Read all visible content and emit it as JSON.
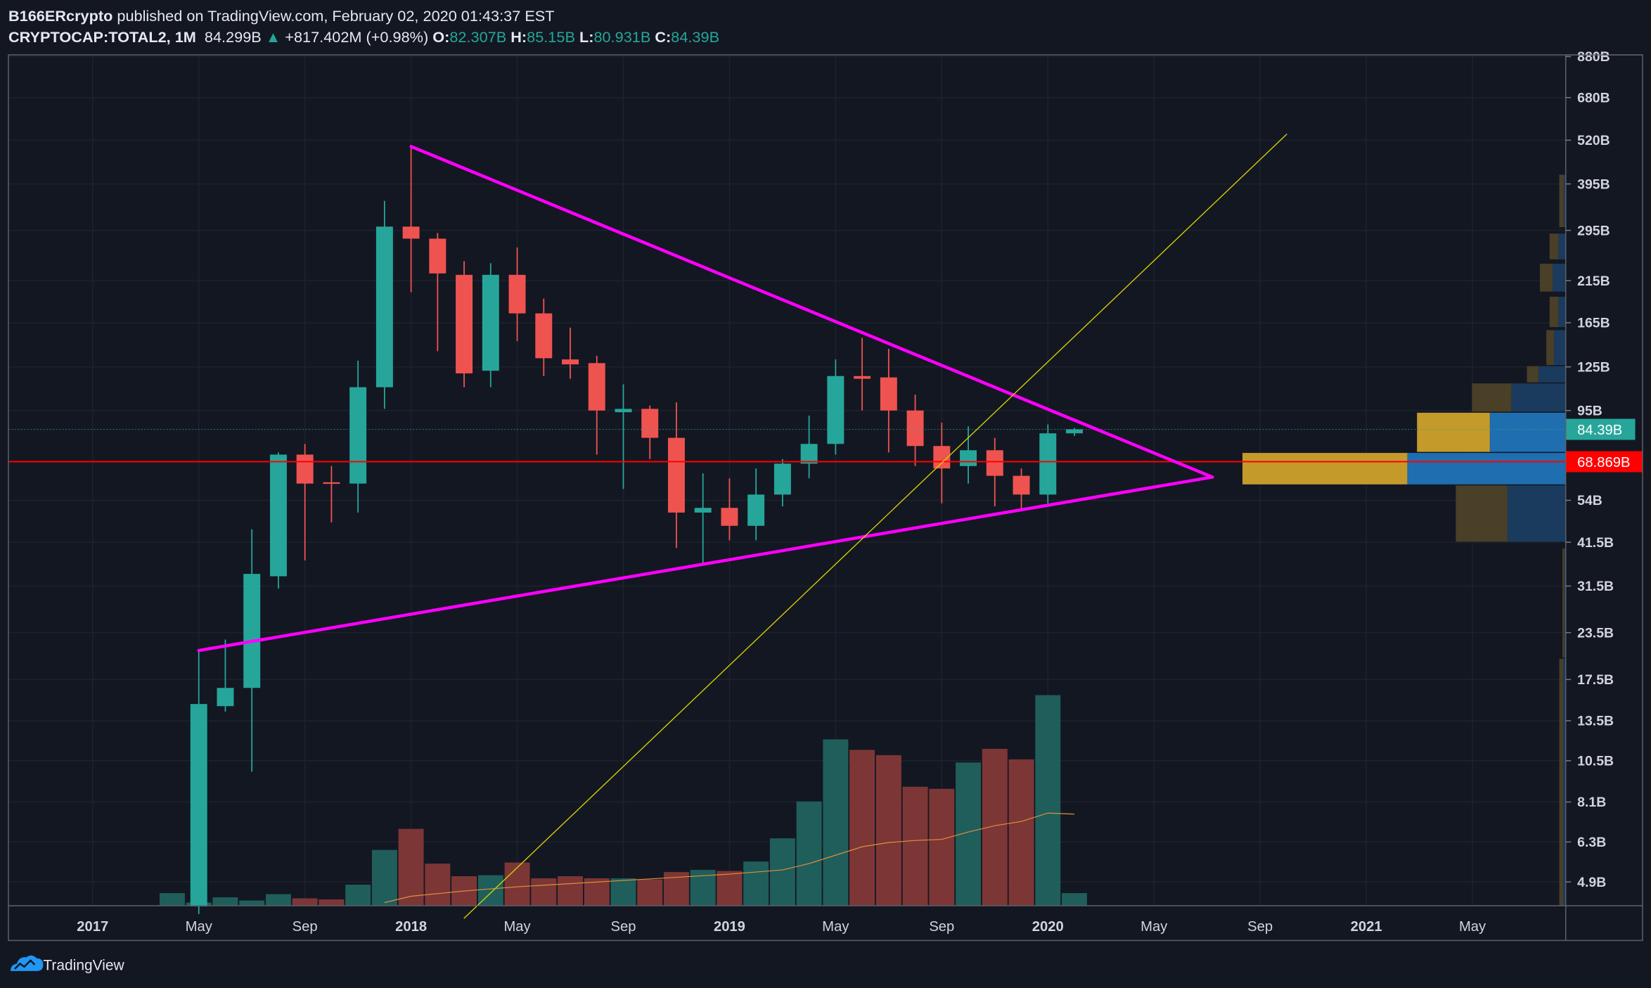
{
  "header": {
    "author": "B166ERcrypto",
    "published": " published on TradingView.com, February 02, 2020 01:43:37 EST",
    "symbol": "CRYPTOCAP:TOTAL2, 1M",
    "last": "84.299B",
    "change": "+817.402M (+0.98%)",
    "o_label": "O:",
    "o": "82.307B",
    "h_label": "H:",
    "h": "85.15B",
    "l_label": "L:",
    "l": "80.931B",
    "c_label": "C:",
    "c": "84.39B"
  },
  "footer": {
    "brand": "TradingView"
  },
  "colors": {
    "bg": "#131722",
    "up": "#26a69a",
    "down": "#ef5350",
    "vol_up": "#1f5e5b",
    "vol_down": "#7d3636",
    "trend": "#ff00ff",
    "diag": "#d4d400",
    "support": "#ff0000",
    "ma": "#e0913a"
  },
  "chart_data": {
    "type": "candlestick",
    "title": "CRYPTOCAP:TOTAL2, 1M",
    "yscale": "log",
    "ylim": [
      3.9,
      960
    ],
    "x_start": "2017-01",
    "price_ticks": [
      {
        "label": "880B",
        "value": 880
      },
      {
        "label": "680B",
        "value": 680
      },
      {
        "label": "520B",
        "value": 520
      },
      {
        "label": "395B",
        "value": 395
      },
      {
        "label": "295B",
        "value": 295
      },
      {
        "label": "215B",
        "value": 215
      },
      {
        "label": "165B",
        "value": 165
      },
      {
        "label": "125B",
        "value": 125
      },
      {
        "label": "95B",
        "value": 95
      },
      {
        "label": "54B",
        "value": 54
      },
      {
        "label": "41.5B",
        "value": 41.5
      },
      {
        "label": "31.5B",
        "value": 31.5
      },
      {
        "label": "23.5B",
        "value": 23.5
      },
      {
        "label": "17.5B",
        "value": 17.5
      },
      {
        "label": "13.5B",
        "value": 13.5
      },
      {
        "label": "10.5B",
        "value": 10.5
      },
      {
        "label": "8.1B",
        "value": 8.1
      },
      {
        "label": "6.3B",
        "value": 6.3
      },
      {
        "label": "4.9B",
        "value": 4.9
      }
    ],
    "time_ticks": [
      {
        "label": "2017",
        "m": 0,
        "bold": true
      },
      {
        "label": "May",
        "m": 4
      },
      {
        "label": "Sep",
        "m": 8
      },
      {
        "label": "2018",
        "m": 12,
        "bold": true
      },
      {
        "label": "May",
        "m": 16
      },
      {
        "label": "Sep",
        "m": 20
      },
      {
        "label": "2019",
        "m": 24,
        "bold": true
      },
      {
        "label": "May",
        "m": 28
      },
      {
        "label": "Sep",
        "m": 32
      },
      {
        "label": "2020",
        "m": 36,
        "bold": true
      },
      {
        "label": "May",
        "m": 40
      },
      {
        "label": "Sep",
        "m": 44
      },
      {
        "label": "2021",
        "m": 48,
        "bold": true
      },
      {
        "label": "May",
        "m": 52
      }
    ],
    "price_badges": [
      {
        "label": "84.39B",
        "value": 84.39,
        "kind": "last"
      },
      {
        "label": "68.869B",
        "value": 68.869,
        "kind": "support"
      }
    ],
    "candles": [
      {
        "m": 4,
        "o": 4.2,
        "h": 21,
        "l": 4.0,
        "c": 15
      },
      {
        "m": 5,
        "o": 14.8,
        "h": 22.5,
        "l": 14.3,
        "c": 16.6
      },
      {
        "m": 6,
        "o": 16.6,
        "h": 45,
        "l": 9.8,
        "c": 34
      },
      {
        "m": 7,
        "o": 33.5,
        "h": 73,
        "l": 31,
        "c": 72
      },
      {
        "m": 8,
        "o": 72,
        "h": 77,
        "l": 37,
        "c": 60
      },
      {
        "m": 9,
        "o": 60.5,
        "h": 67,
        "l": 47,
        "c": 60
      },
      {
        "m": 10,
        "o": 60,
        "h": 130,
        "l": 50,
        "c": 110
      },
      {
        "m": 11,
        "o": 110,
        "h": 355,
        "l": 96,
        "c": 302
      },
      {
        "m": 12,
        "o": 302,
        "h": 500,
        "l": 200,
        "c": 280
      },
      {
        "m": 13,
        "o": 280,
        "h": 290,
        "l": 138,
        "c": 225
      },
      {
        "m": 14,
        "o": 223,
        "h": 243,
        "l": 110,
        "c": 120
      },
      {
        "m": 15,
        "o": 122,
        "h": 240,
        "l": 110,
        "c": 223
      },
      {
        "m": 16,
        "o": 223,
        "h": 265,
        "l": 147,
        "c": 175
      },
      {
        "m": 17,
        "o": 175,
        "h": 192,
        "l": 118,
        "c": 132
      },
      {
        "m": 18,
        "o": 131,
        "h": 160,
        "l": 116,
        "c": 127
      },
      {
        "m": 19,
        "o": 128,
        "h": 134,
        "l": 72,
        "c": 95
      },
      {
        "m": 20,
        "o": 94,
        "h": 112,
        "l": 58,
        "c": 96
      },
      {
        "m": 21,
        "o": 96,
        "h": 98,
        "l": 70,
        "c": 80
      },
      {
        "m": 22,
        "o": 80,
        "h": 100,
        "l": 40,
        "c": 50
      },
      {
        "m": 23,
        "o": 50,
        "h": 64,
        "l": 36,
        "c": 51.5
      },
      {
        "m": 24,
        "o": 51.5,
        "h": 62,
        "l": 42,
        "c": 46
      },
      {
        "m": 25,
        "o": 46,
        "h": 66,
        "l": 42,
        "c": 56
      },
      {
        "m": 26,
        "o": 56,
        "h": 70,
        "l": 52,
        "c": 68
      },
      {
        "m": 27,
        "o": 68,
        "h": 92,
        "l": 62,
        "c": 77
      },
      {
        "m": 28,
        "o": 77,
        "h": 131,
        "l": 72,
        "c": 118
      },
      {
        "m": 29,
        "o": 118,
        "h": 150,
        "l": 95,
        "c": 116
      },
      {
        "m": 30,
        "o": 117,
        "h": 140,
        "l": 73,
        "c": 95
      },
      {
        "m": 31,
        "o": 95,
        "h": 105,
        "l": 67,
        "c": 76
      },
      {
        "m": 32,
        "o": 76,
        "h": 88,
        "l": 53,
        "c": 66
      },
      {
        "m": 33,
        "o": 67,
        "h": 86,
        "l": 60,
        "c": 74
      },
      {
        "m": 34,
        "o": 74,
        "h": 80,
        "l": 52,
        "c": 63
      },
      {
        "m": 35,
        "o": 63,
        "h": 66,
        "l": 51,
        "c": 56
      },
      {
        "m": 36,
        "o": 56,
        "h": 87,
        "l": 53,
        "c": 82.3
      },
      {
        "m": 37,
        "o": 82.307,
        "h": 85.15,
        "l": 80.931,
        "c": 84.39
      }
    ],
    "volume_relative": [
      {
        "m": 3,
        "v": 12,
        "up": true
      },
      {
        "m": 4,
        "v": 3,
        "up": true
      },
      {
        "m": 5,
        "v": 8,
        "up": true
      },
      {
        "m": 6,
        "v": 5,
        "up": true
      },
      {
        "m": 7,
        "v": 11,
        "up": true
      },
      {
        "m": 8,
        "v": 7,
        "up": false
      },
      {
        "m": 9,
        "v": 6,
        "up": false
      },
      {
        "m": 10,
        "v": 20,
        "up": true
      },
      {
        "m": 11,
        "v": 53,
        "up": true
      },
      {
        "m": 12,
        "v": 73,
        "up": false
      },
      {
        "m": 13,
        "v": 40,
        "up": false
      },
      {
        "m": 14,
        "v": 28,
        "up": false
      },
      {
        "m": 15,
        "v": 29,
        "up": true
      },
      {
        "m": 16,
        "v": 41,
        "up": false
      },
      {
        "m": 17,
        "v": 26,
        "up": false
      },
      {
        "m": 18,
        "v": 28,
        "up": false
      },
      {
        "m": 19,
        "v": 26,
        "up": false
      },
      {
        "m": 20,
        "v": 26,
        "up": true
      },
      {
        "m": 21,
        "v": 25,
        "up": false
      },
      {
        "m": 22,
        "v": 32,
        "up": false
      },
      {
        "m": 23,
        "v": 34,
        "up": true
      },
      {
        "m": 24,
        "v": 33,
        "up": false
      },
      {
        "m": 25,
        "v": 42,
        "up": true
      },
      {
        "m": 26,
        "v": 64,
        "up": true
      },
      {
        "m": 27,
        "v": 99,
        "up": true
      },
      {
        "m": 28,
        "v": 158,
        "up": true
      },
      {
        "m": 29,
        "v": 148,
        "up": false
      },
      {
        "m": 30,
        "v": 143,
        "up": false
      },
      {
        "m": 31,
        "v": 113,
        "up": false
      },
      {
        "m": 32,
        "v": 111,
        "up": false
      },
      {
        "m": 33,
        "v": 136,
        "up": true
      },
      {
        "m": 34,
        "v": 149,
        "up": false
      },
      {
        "m": 35,
        "v": 139,
        "up": false
      },
      {
        "m": 36,
        "v": 200,
        "up": true
      },
      {
        "m": 37,
        "v": 12,
        "up": true
      }
    ],
    "volume_ma_relative": [
      {
        "m": 11,
        "v": 3
      },
      {
        "m": 12,
        "v": 9
      },
      {
        "m": 14,
        "v": 14
      },
      {
        "m": 16,
        "v": 18
      },
      {
        "m": 20,
        "v": 24
      },
      {
        "m": 24,
        "v": 30
      },
      {
        "m": 26,
        "v": 34
      },
      {
        "m": 27,
        "v": 40
      },
      {
        "m": 28,
        "v": 48
      },
      {
        "m": 29,
        "v": 56
      },
      {
        "m": 30,
        "v": 60
      },
      {
        "m": 31,
        "v": 62
      },
      {
        "m": 32,
        "v": 63
      },
      {
        "m": 33,
        "v": 70
      },
      {
        "m": 34,
        "v": 76
      },
      {
        "m": 35,
        "v": 80
      },
      {
        "m": 36,
        "v": 88
      },
      {
        "m": 37,
        "v": 87
      }
    ],
    "volume_profile": [
      {
        "lo": 59.5,
        "hi": 73,
        "up": 0.51,
        "down": 0.49,
        "value_area": true
      },
      {
        "lo": 73,
        "hi": 94,
        "up": 0.49,
        "down": 0.51,
        "value_area": true
      },
      {
        "lo": 94,
        "hi": 113,
        "up": 0.42,
        "down": 0.58,
        "value_area": false
      },
      {
        "lo": 41.5,
        "hi": 59.5,
        "up": 0.47,
        "down": 0.53,
        "value_area": false
      },
      {
        "lo": 113,
        "hi": 126,
        "up": 0.3,
        "down": 0.7,
        "value_area": false
      },
      {
        "lo": 126,
        "hi": 158,
        "up": 0.4,
        "down": 0.6,
        "value_area": false
      },
      {
        "lo": 160,
        "hi": 195,
        "up": 0.55,
        "down": 0.45,
        "value_area": false
      },
      {
        "lo": 200,
        "hi": 240,
        "up": 0.5,
        "down": 0.5,
        "value_area": false
      },
      {
        "lo": 245,
        "hi": 290,
        "up": 0.55,
        "down": 0.45,
        "value_area": false
      },
      {
        "lo": 300,
        "hi": 420,
        "up": 0.7,
        "down": 0.3,
        "value_area": false
      },
      {
        "lo": 4.2,
        "hi": 20,
        "up": 0.6,
        "down": 0.4,
        "value_area": false
      },
      {
        "lo": 20,
        "hi": 40,
        "up": 0.6,
        "down": 0.4,
        "value_area": false
      }
    ],
    "volume_profile_width_relative": [
      1.0,
      0.46,
      0.29,
      0.34,
      0.12,
      0.06,
      0.05,
      0.08,
      0.05,
      0.02,
      0.02,
      0.01
    ],
    "drawings": [
      {
        "name": "upper-trendline",
        "from": {
          "m": 12,
          "p": 500
        },
        "to": {
          "m": 42.2,
          "p": 62.5
        }
      },
      {
        "name": "lower-trendline",
        "from": {
          "m": 4,
          "p": 21
        },
        "to": {
          "m": 42.2,
          "p": 62.5
        }
      },
      {
        "name": "diagonal-line",
        "from": {
          "m": 14.0,
          "p": 3.9
        },
        "to": {
          "m": 45,
          "p": 540
        }
      }
    ]
  }
}
